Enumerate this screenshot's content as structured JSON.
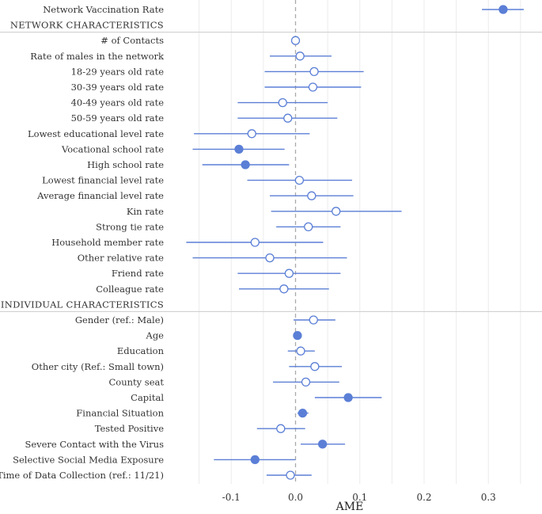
{
  "chart_data": {
    "type": "scatter",
    "subtype": "coefficient-plot",
    "xlabel": "AME",
    "xlim": [
      -0.2,
      0.38
    ],
    "xticks": [
      -0.1,
      0.0,
      0.1,
      0.2,
      0.3
    ],
    "xtick_labels": [
      "-0.1",
      "0.0",
      "0.1",
      "0.2",
      "0.3"
    ],
    "reference_line": 0.0,
    "colors": {
      "filled": "#5b7fd6",
      "line": "#5b7fd6",
      "hollow_fill": "#ffffff",
      "grid": "#ececec",
      "zero_line": "#aaaaaa",
      "divider": "#cccccc"
    },
    "rows": [
      {
        "kind": "var",
        "label": "Network Vaccination Rate",
        "est": 0.323,
        "lo": 0.29,
        "hi": 0.355,
        "significant": true
      },
      {
        "kind": "section",
        "label": "NETWORK CHARACTERISTICS"
      },
      {
        "kind": "var",
        "label": "# of Contacts",
        "est": 0.0,
        "lo": 0.0,
        "hi": 0.0,
        "significant": false
      },
      {
        "kind": "var",
        "label": "Rate of males in the network",
        "est": 0.007,
        "lo": -0.04,
        "hi": 0.056,
        "significant": false
      },
      {
        "kind": "var",
        "label": "18-29 years old rate",
        "est": 0.029,
        "lo": -0.048,
        "hi": 0.106,
        "significant": false
      },
      {
        "kind": "var",
        "label": "30-39 years old rate",
        "est": 0.027,
        "lo": -0.048,
        "hi": 0.102,
        "significant": false
      },
      {
        "kind": "var",
        "label": "40-49 years old rate",
        "est": -0.02,
        "lo": -0.09,
        "hi": 0.05,
        "significant": false
      },
      {
        "kind": "var",
        "label": "50-59 years old rate",
        "est": -0.012,
        "lo": -0.09,
        "hi": 0.065,
        "significant": false
      },
      {
        "kind": "var",
        "label": "Lowest educational level rate",
        "est": -0.068,
        "lo": -0.158,
        "hi": 0.022,
        "significant": false
      },
      {
        "kind": "var",
        "label": "Vocational school rate",
        "est": -0.088,
        "lo": -0.16,
        "hi": -0.017,
        "significant": true
      },
      {
        "kind": "var",
        "label": "High school rate",
        "est": -0.078,
        "lo": -0.145,
        "hi": -0.01,
        "significant": true
      },
      {
        "kind": "var",
        "label": "Lowest financial level rate",
        "est": 0.006,
        "lo": -0.075,
        "hi": 0.088,
        "significant": false
      },
      {
        "kind": "var",
        "label": "Average financial level rate",
        "est": 0.025,
        "lo": -0.04,
        "hi": 0.09,
        "significant": false
      },
      {
        "kind": "var",
        "label": "Kin rate",
        "est": 0.063,
        "lo": -0.038,
        "hi": 0.165,
        "significant": false
      },
      {
        "kind": "var",
        "label": "Strong tie rate",
        "est": 0.02,
        "lo": -0.03,
        "hi": 0.07,
        "significant": false
      },
      {
        "kind": "var",
        "label": "Household member rate",
        "est": -0.063,
        "lo": -0.17,
        "hi": 0.043,
        "significant": false
      },
      {
        "kind": "var",
        "label": "Other relative rate",
        "est": -0.04,
        "lo": -0.16,
        "hi": 0.08,
        "significant": false
      },
      {
        "kind": "var",
        "label": "Friend rate",
        "est": -0.01,
        "lo": -0.09,
        "hi": 0.07,
        "significant": false
      },
      {
        "kind": "var",
        "label": "Colleague rate",
        "est": -0.018,
        "lo": -0.088,
        "hi": 0.052,
        "significant": false
      },
      {
        "kind": "section",
        "label": "INDIVIDUAL CHARACTERISTICS"
      },
      {
        "kind": "var",
        "label": "Gender (ref.: Male)",
        "est": 0.028,
        "lo": -0.003,
        "hi": 0.062,
        "significant": false
      },
      {
        "kind": "var",
        "label": "Age",
        "est": 0.003,
        "lo": 0.001,
        "hi": 0.005,
        "significant": true
      },
      {
        "kind": "var",
        "label": "Education",
        "est": 0.008,
        "lo": -0.012,
        "hi": 0.03,
        "significant": false
      },
      {
        "kind": "var",
        "label": "Other city (Ref.: Small town)",
        "est": 0.03,
        "lo": -0.01,
        "hi": 0.072,
        "significant": false
      },
      {
        "kind": "var",
        "label": "County seat",
        "est": 0.016,
        "lo": -0.035,
        "hi": 0.068,
        "significant": false
      },
      {
        "kind": "var",
        "label": "Capital",
        "est": 0.082,
        "lo": 0.03,
        "hi": 0.134,
        "significant": true
      },
      {
        "kind": "var",
        "label": "Financial Situation",
        "est": 0.011,
        "lo": 0.003,
        "hi": 0.02,
        "significant": true
      },
      {
        "kind": "var",
        "label": "Tested Positive",
        "est": -0.023,
        "lo": -0.06,
        "hi": 0.015,
        "significant": false
      },
      {
        "kind": "var",
        "label": "Severe Contact with the Virus",
        "est": 0.042,
        "lo": 0.008,
        "hi": 0.077,
        "significant": true
      },
      {
        "kind": "var",
        "label": "Selective Social Media Exposure",
        "est": -0.063,
        "lo": -0.127,
        "hi": 0.0,
        "significant": true
      },
      {
        "kind": "var",
        "label": "Time of Data Collection (ref.: 11/21)",
        "est": -0.008,
        "lo": -0.045,
        "hi": 0.025,
        "significant": false
      }
    ]
  }
}
